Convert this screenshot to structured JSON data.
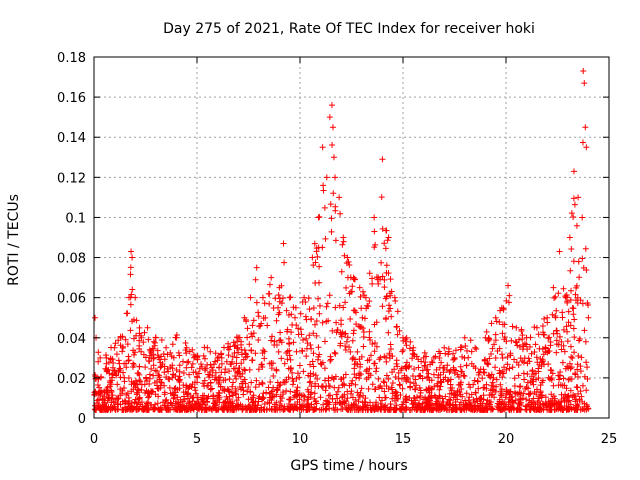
{
  "chart_data": {
    "type": "scatter",
    "title": "Day 275 of 2021, Rate Of TEC Index for receiver hoki",
    "xlabel": "GPS time / hours",
    "ylabel": "ROTI / TECUs",
    "xlim": [
      0,
      25
    ],
    "ylim": [
      0,
      0.18
    ],
    "x_ticks": [
      "0",
      "5",
      "10",
      "15",
      "20",
      "25"
    ],
    "y_ticks": [
      "0",
      "0.02",
      "0.04",
      "0.06",
      "0.08",
      "0.1",
      "0.12",
      "0.14",
      "0.16",
      "0.18"
    ],
    "grid": true,
    "marker": "plus",
    "colors": {
      "series": "#ff0000"
    },
    "series": [
      {
        "name": "",
        "x": [
          0.05,
          0.1,
          0.3,
          0.6,
          1.0,
          1.3,
          1.7,
          1.8,
          1.85,
          2.0,
          2.3,
          2.6,
          3.0,
          3.5,
          4.0,
          4.5,
          5.0,
          5.5,
          6.0,
          6.5,
          7.0,
          7.3,
          7.6,
          7.9,
          8.2,
          8.6,
          9.0,
          9.2,
          9.5,
          9.8,
          10.2,
          10.6,
          10.9,
          11.1,
          11.3,
          11.45,
          11.55,
          11.6,
          11.65,
          11.7,
          11.9,
          12.1,
          12.3,
          12.6,
          12.9,
          13.2,
          13.6,
          13.8,
          14.0,
          14.3,
          14.6,
          15.0,
          15.5,
          16.0,
          16.5,
          17.0,
          17.5,
          18.0,
          18.5,
          19.0,
          19.5,
          19.8,
          20.1,
          20.5,
          21.0,
          21.5,
          22.0,
          22.3,
          22.6,
          22.9,
          23.1,
          23.3,
          23.5,
          23.7,
          23.75,
          23.8,
          23.85,
          23.9,
          24.0
        ],
        "y": [
          0.05,
          0.04,
          0.03,
          0.03,
          0.035,
          0.04,
          0.06,
          0.083,
          0.08,
          0.06,
          0.04,
          0.045,
          0.04,
          0.035,
          0.04,
          0.035,
          0.03,
          0.035,
          0.03,
          0.035,
          0.04,
          0.05,
          0.06,
          0.075,
          0.06,
          0.07,
          0.065,
          0.087,
          0.06,
          0.055,
          0.06,
          0.08,
          0.1,
          0.135,
          0.12,
          0.15,
          0.156,
          0.145,
          0.13,
          0.12,
          0.11,
          0.09,
          0.08,
          0.07,
          0.065,
          0.06,
          0.1,
          0.07,
          0.129,
          0.09,
          0.06,
          0.04,
          0.035,
          0.03,
          0.03,
          0.035,
          0.03,
          0.04,
          0.035,
          0.04,
          0.05,
          0.055,
          0.066,
          0.045,
          0.04,
          0.045,
          0.05,
          0.065,
          0.083,
          0.06,
          0.09,
          0.123,
          0.11,
          0.1,
          0.173,
          0.167,
          0.145,
          0.135,
          0.05
        ]
      }
    ]
  }
}
